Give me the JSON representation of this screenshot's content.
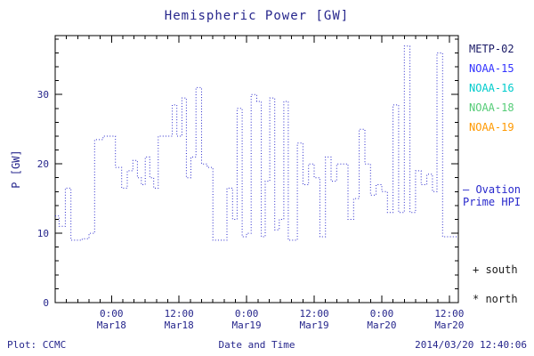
{
  "header": {
    "title": "Hemispheric Power [GW]"
  },
  "chart_data": {
    "type": "line",
    "line_style": "dotted-step",
    "line_color": "#2828cc",
    "title": "Hemispheric Power [GW]",
    "xlabel": "Date and Time",
    "ylabel": "P [GW]",
    "ylim": [
      0,
      38.5
    ],
    "xlim_hours_from_mar18": [
      -10,
      61.6
    ],
    "y_ticks": [
      0,
      10,
      20,
      30
    ],
    "y_minor_step": 2,
    "x_minor_step_hours": 2,
    "x_ticks": [
      {
        "t": 0,
        "l1": "0:00",
        "l2": "Mar18"
      },
      {
        "t": 12,
        "l1": "12:00",
        "l2": "Mar18"
      },
      {
        "t": 24,
        "l1": "0:00",
        "l2": "Mar19"
      },
      {
        "t": 36,
        "l1": "12:00",
        "l2": "Mar19"
      },
      {
        "t": 48,
        "l1": "0:00",
        "l2": "Mar20"
      },
      {
        "t": 60,
        "l1": "12:00",
        "l2": "Mar20"
      }
    ],
    "series": {
      "name": "Ovation Prime HPI",
      "t_hours": [
        -10,
        -9.3,
        -8.2,
        -7.2,
        -5.2,
        -4,
        -3,
        -1.5,
        0.7,
        1.8,
        2.8,
        3.8,
        4.6,
        5.3,
        6,
        6.8,
        7.5,
        8.3,
        10,
        10.8,
        11.6,
        12.5,
        13.3,
        14.1,
        15,
        16,
        17,
        18,
        19.5,
        20.5,
        21.5,
        22.3,
        23.2,
        24,
        24.8,
        25.8,
        26.6,
        27.3,
        28.1,
        29,
        29.8,
        30.6,
        31.4,
        33,
        34,
        35,
        36,
        37,
        38,
        39,
        40,
        41,
        42,
        43,
        44,
        45,
        46,
        47,
        48,
        49,
        50,
        51,
        52,
        53,
        54,
        55,
        56,
        57,
        57.8,
        58.8,
        61.5
      ],
      "p_gw": [
        12.5,
        11,
        16.5,
        9,
        9.2,
        10,
        23.5,
        24,
        19.5,
        16.5,
        19,
        20.5,
        18,
        17,
        21,
        18,
        16.5,
        24,
        24,
        28.5,
        24,
        29.5,
        18,
        21,
        31,
        20,
        19.5,
        9,
        9,
        16.5,
        12,
        28,
        9.5,
        10,
        30,
        29,
        9.5,
        17.5,
        29.5,
        10.5,
        12,
        29,
        9,
        23,
        17,
        20,
        18,
        9.5,
        21,
        17.5,
        20,
        20,
        12,
        15,
        25,
        20,
        15.5,
        17,
        16,
        13,
        28.5,
        13,
        37,
        13,
        19,
        17,
        18.5,
        16,
        36,
        9.5
      ]
    }
  },
  "legend": {
    "items": [
      {
        "label": "METP-02",
        "color": "#1a1a66"
      },
      {
        "label": "NOAA-15",
        "color": "#3333ff"
      },
      {
        "label": "NOAA-16",
        "color": "#00cccc"
      },
      {
        "label": "NOAA-18",
        "color": "#55cc77"
      },
      {
        "label": "NOAA-19",
        "color": "#ff9900"
      }
    ]
  },
  "annotations": {
    "ovation_line1": "— Ovation",
    "ovation_line2": "Prime HPI",
    "ovation_color": "#2828cc",
    "south": "+ south",
    "north": "* north"
  },
  "footer": {
    "credit": "Plot: CCMC",
    "timestamp": "2014/03/20 12:40:06"
  }
}
